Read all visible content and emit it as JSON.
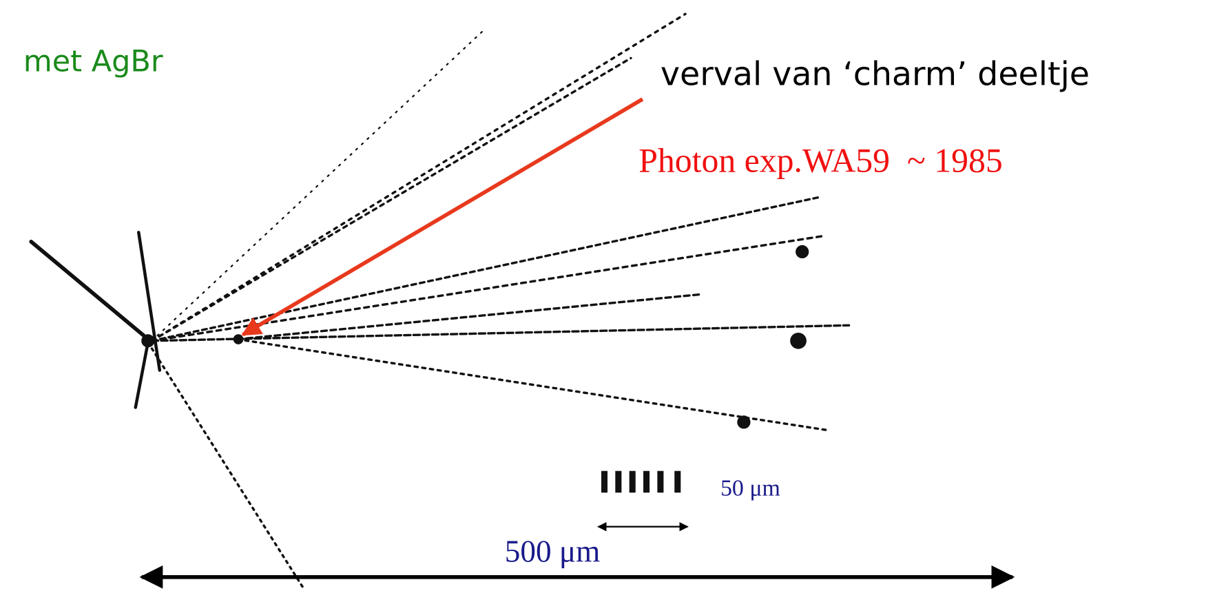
{
  "header": {
    "subtitle": "met AgBr"
  },
  "annotations": {
    "decay": "verval van ‘charm’ deeltje",
    "experiment": "Photon exp.WA59  ~ 1985",
    "small_scale": "50 μm",
    "large_scale": "500 μm"
  }
}
